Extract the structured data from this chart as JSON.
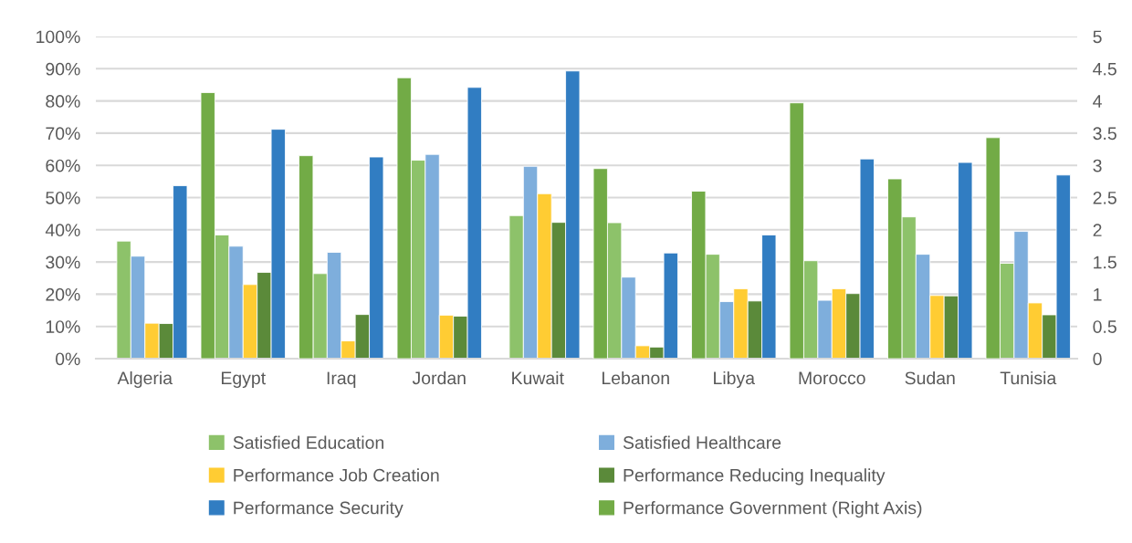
{
  "chart_data": {
    "type": "bar",
    "categories": [
      "Algeria",
      "Egypt",
      "Iraq",
      "Jordan",
      "Kuwait",
      "Lebanon",
      "Libya",
      "Morocco",
      "Sudan",
      "Tunisia"
    ],
    "series": [
      {
        "name": "Performance Government (Right Axis)",
        "color": "#72ab46",
        "axis": "y2",
        "values": [
          null,
          4.13,
          3.15,
          4.36,
          null,
          2.95,
          2.6,
          3.97,
          2.79,
          3.43
        ]
      },
      {
        "name": "Satisfied Education",
        "color": "#8dc26a",
        "values": [
          36.5,
          38.4,
          26.4,
          61.6,
          44.4,
          42.2,
          32.4,
          30.4,
          44.0,
          29.6
        ]
      },
      {
        "name": "Satisfied Healthcare",
        "color": "#7eaedc",
        "values": [
          31.8,
          34.9,
          33.0,
          63.4,
          59.7,
          25.3,
          17.7,
          18.1,
          32.4,
          39.5
        ]
      },
      {
        "name": "Performance Job Creation",
        "color": "#ffcc33",
        "values": [
          11.0,
          23.0,
          5.5,
          13.5,
          51.2,
          4.0,
          21.7,
          21.7,
          19.6,
          17.3
        ]
      },
      {
        "name": "Performance Reducing Inequality",
        "color": "#5b8a3a",
        "values": [
          10.9,
          26.8,
          13.7,
          13.2,
          42.3,
          3.6,
          17.9,
          20.2,
          19.5,
          13.6
        ]
      },
      {
        "name": "Performance Security",
        "color": "#317dc2",
        "values": [
          53.7,
          71.2,
          62.6,
          84.2,
          89.3,
          32.8,
          38.4,
          62.0,
          60.9,
          57.0
        ]
      }
    ],
    "ylim": [
      0,
      100
    ],
    "yticks": [
      {
        "value": 0,
        "label": "0%"
      },
      {
        "value": 10,
        "label": "10%"
      },
      {
        "value": 20,
        "label": "20%"
      },
      {
        "value": 30,
        "label": "30%"
      },
      {
        "value": 40,
        "label": "40%"
      },
      {
        "value": 50,
        "label": "50%"
      },
      {
        "value": 60,
        "label": "60%"
      },
      {
        "value": 70,
        "label": "70%"
      },
      {
        "value": 80,
        "label": "80%"
      },
      {
        "value": 90,
        "label": "90%"
      },
      {
        "value": 100,
        "label": "100%"
      }
    ],
    "y2lim": [
      0,
      5
    ],
    "y2ticks": [
      0,
      0.5,
      1,
      1.5,
      2,
      2.5,
      3,
      3.5,
      4,
      4.5,
      5
    ],
    "grid": "y",
    "legend": "bottom"
  }
}
